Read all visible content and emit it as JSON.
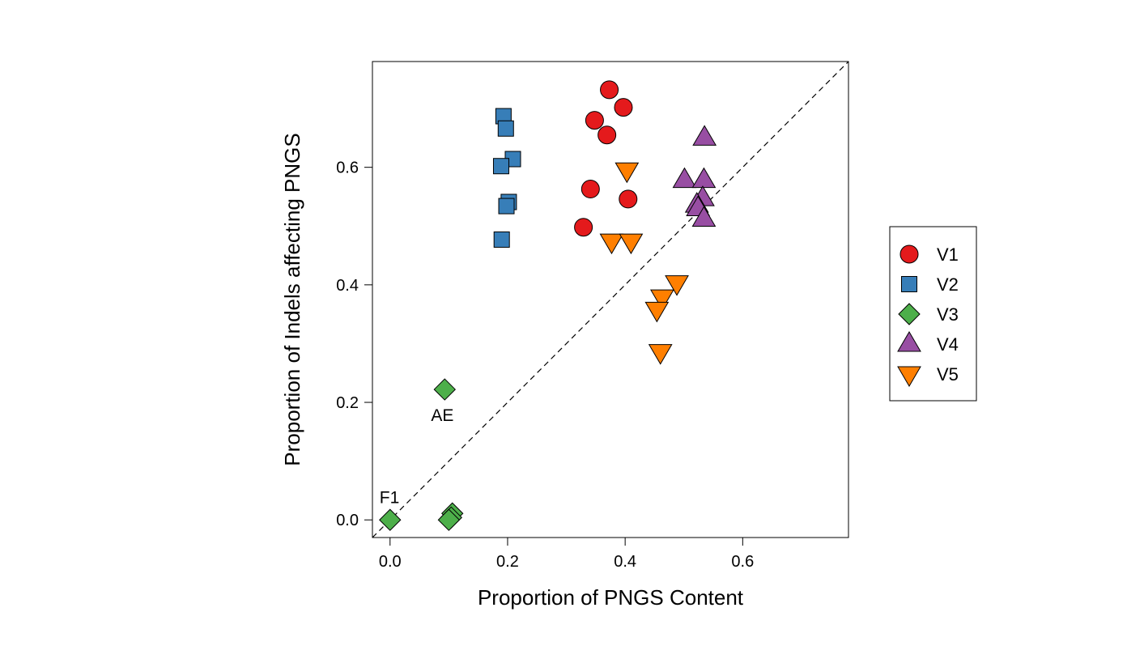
{
  "chart_data": {
    "type": "scatter",
    "title": "",
    "xlabel": "Proportion of PNGS Content",
    "ylabel": "Proportion of Indels affecting PNGS",
    "xlim": [
      -0.03,
      0.78
    ],
    "ylim": [
      -0.03,
      0.78
    ],
    "xticks": [
      {
        "value": 0.0,
        "label": "0.0"
      },
      {
        "value": 0.2,
        "label": "0.2"
      },
      {
        "value": 0.4,
        "label": "0.4"
      },
      {
        "value": 0.6,
        "label": "0.6"
      }
    ],
    "yticks": [
      {
        "value": 0.0,
        "label": "0.0"
      },
      {
        "value": 0.2,
        "label": "0.2"
      },
      {
        "value": 0.4,
        "label": "0.4"
      },
      {
        "value": 0.6,
        "label": "0.6"
      }
    ],
    "reference_line": {
      "type": "identity",
      "style": "dashed"
    },
    "legend_position": "right",
    "series": [
      {
        "name": "V1",
        "shape": "circle",
        "color": "#e41a1c",
        "points": [
          [
            0.373,
            0.732
          ],
          [
            0.397,
            0.702
          ],
          [
            0.348,
            0.68
          ],
          [
            0.369,
            0.655
          ],
          [
            0.341,
            0.563
          ],
          [
            0.405,
            0.546
          ],
          [
            0.329,
            0.498
          ]
        ]
      },
      {
        "name": "V2",
        "shape": "square",
        "color": "#377eb8",
        "points": [
          [
            0.193,
            0.687
          ],
          [
            0.197,
            0.666
          ],
          [
            0.209,
            0.614
          ],
          [
            0.189,
            0.602
          ],
          [
            0.202,
            0.541
          ],
          [
            0.198,
            0.534
          ],
          [
            0.19,
            0.477
          ]
        ]
      },
      {
        "name": "V3",
        "shape": "diamond",
        "color": "#4daf4a",
        "points": [
          [
            0.093,
            0.222
          ],
          [
            0.0,
            0.0
          ],
          [
            0.106,
            0.011
          ],
          [
            0.104,
            0.004
          ],
          [
            0.1,
            0.0
          ]
        ]
      },
      {
        "name": "V4",
        "shape": "triangle-up",
        "color": "#984ea3",
        "points": [
          [
            0.535,
            0.65
          ],
          [
            0.501,
            0.578
          ],
          [
            0.534,
            0.578
          ],
          [
            0.532,
            0.547
          ],
          [
            0.522,
            0.536
          ],
          [
            0.524,
            0.53
          ],
          [
            0.534,
            0.512
          ]
        ]
      },
      {
        "name": "V5",
        "shape": "triangle-down",
        "color": "#ff7f00",
        "points": [
          [
            0.403,
            0.595
          ],
          [
            0.377,
            0.474
          ],
          [
            0.41,
            0.474
          ],
          [
            0.488,
            0.403
          ],
          [
            0.463,
            0.379
          ],
          [
            0.454,
            0.358
          ],
          [
            0.46,
            0.286
          ]
        ]
      }
    ],
    "annotations": [
      {
        "text": "AE",
        "x": 0.089,
        "y": 0.178
      },
      {
        "text": "F1",
        "x": -0.001,
        "y": 0.038
      }
    ]
  }
}
